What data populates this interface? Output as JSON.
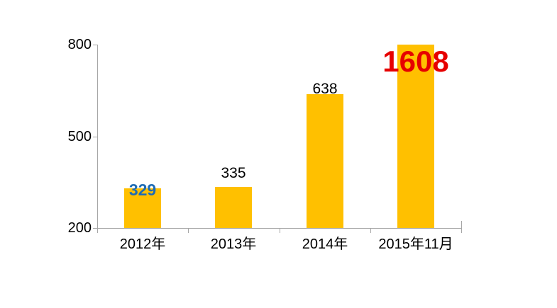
{
  "page": {
    "background": "#FFFFFF"
  },
  "chart_data": {
    "type": "bar",
    "title": "",
    "xlabel": "",
    "ylabel": "",
    "categories": [
      "2012年",
      "2013年",
      "2014年",
      "2015年11月"
    ],
    "values": [
      329,
      335,
      638,
      1608
    ],
    "ylim": [
      200,
      800
    ],
    "y_ticks": [
      200,
      500,
      800
    ],
    "grid": "off",
    "legend": "none",
    "clip_bars_to_ylim": true,
    "bar_color": "#FFC000",
    "axis_color": "#A6A6A6",
    "tick_label_color": "#000000",
    "data_labels": [
      {
        "text": "329",
        "color": "#1F6CB4",
        "font_size": 23,
        "bold": true,
        "placement": "overlapping-bar-top",
        "dy": 14
      },
      {
        "text": "335",
        "color": "#000000",
        "font_size": 21,
        "bold": false,
        "placement": "above-bar",
        "dy": -9
      },
      {
        "text": "638",
        "color": "#000000",
        "font_size": 21,
        "bold": false,
        "placement": "above-bar",
        "dy": 3
      },
      {
        "text": "1608",
        "color": "#E60000",
        "font_size": 42,
        "bold": true,
        "placement": "overlapping-bar-top",
        "dy": 45
      }
    ]
  }
}
